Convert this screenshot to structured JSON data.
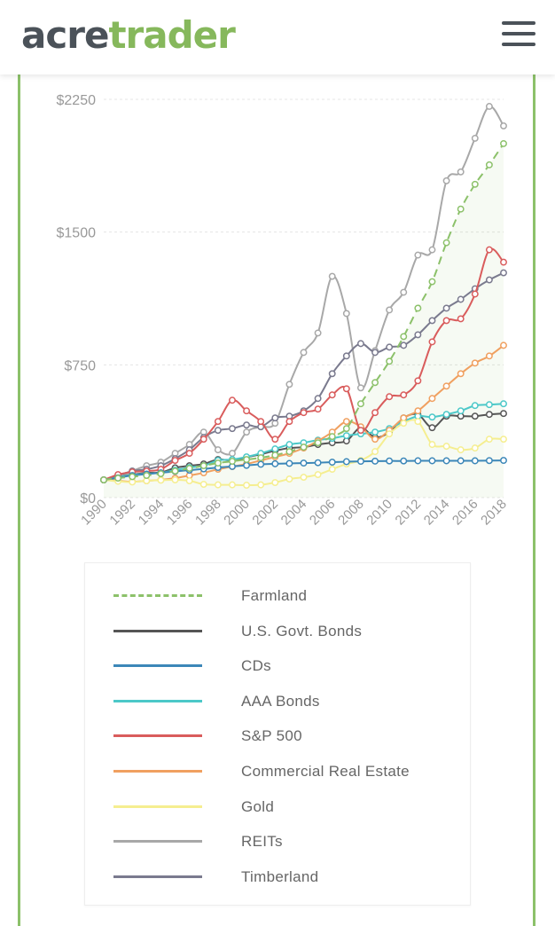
{
  "header": {
    "logo_part1": "acre",
    "logo_part2": "trader"
  },
  "chart_data": {
    "type": "line",
    "title": "",
    "xlabel": "",
    "ylabel": "",
    "x": [
      1990,
      1991,
      1992,
      1993,
      1994,
      1995,
      1996,
      1997,
      1998,
      1999,
      2000,
      2001,
      2002,
      2003,
      2004,
      2005,
      2006,
      2007,
      2008,
      2009,
      2010,
      2011,
      2012,
      2013,
      2014,
      2015,
      2016,
      2017,
      2018
    ],
    "x_ticks": [
      "1990",
      "1992",
      "1994",
      "1996",
      "1998",
      "2000",
      "2002",
      "2004",
      "2006",
      "2008",
      "2010",
      "2012",
      "2014",
      "2016",
      "2018"
    ],
    "y_ticks": [
      "$0",
      "$750",
      "$1500",
      "$2250"
    ],
    "ylim": [
      0,
      2250
    ],
    "grid": true,
    "series": [
      {
        "name": "Farmland",
        "color": "#8cc16a",
        "dash": true,
        "values": [
          100,
          110,
          118,
          125,
          135,
          150,
          165,
          180,
          195,
          205,
          215,
          225,
          240,
          260,
          285,
          310,
          345,
          390,
          530,
          650,
          770,
          910,
          1070,
          1220,
          1440,
          1630,
          1770,
          1880,
          2000
        ]
      },
      {
        "name": "U.S. Govt. Bonds",
        "color": "#555555",
        "dash": false,
        "values": [
          100,
          116,
          130,
          140,
          142,
          168,
          180,
          190,
          215,
          210,
          228,
          245,
          265,
          280,
          285,
          300,
          310,
          320,
          395,
          340,
          370,
          450,
          470,
          395,
          460,
          460,
          460,
          470,
          475
        ]
      },
      {
        "name": "CDs",
        "color": "#3c87b8",
        "dash": false,
        "values": [
          100,
          112,
          125,
          133,
          140,
          148,
          155,
          162,
          170,
          176,
          182,
          188,
          191,
          193,
          195,
          197,
          200,
          203,
          205,
          206,
          207,
          207,
          208,
          208,
          208,
          208,
          208,
          209,
          210
        ]
      },
      {
        "name": "AAA Bonds",
        "color": "#4cc8c8",
        "dash": false,
        "values": [
          100,
          115,
          128,
          135,
          140,
          155,
          170,
          180,
          210,
          215,
          230,
          250,
          275,
          300,
          310,
          325,
          335,
          350,
          360,
          370,
          390,
          430,
          460,
          455,
          470,
          490,
          520,
          525,
          530
        ]
      },
      {
        "name": "S&P 500",
        "color": "#d95c5c",
        "dash": false,
        "values": [
          100,
          130,
          145,
          150,
          160,
          210,
          250,
          330,
          430,
          550,
          490,
          430,
          330,
          430,
          480,
          500,
          580,
          615,
          380,
          480,
          570,
          580,
          660,
          880,
          1000,
          1010,
          1150,
          1400,
          1330
        ]
      },
      {
        "name": "Commercial Real Estate",
        "color": "#f0a060",
        "dash": false,
        "values": [
          100,
          95,
          90,
          95,
          100,
          110,
          125,
          140,
          160,
          175,
          190,
          210,
          230,
          250,
          280,
          320,
          370,
          430,
          400,
          330,
          380,
          450,
          490,
          560,
          630,
          700,
          760,
          800,
          860
        ]
      },
      {
        "name": "Gold",
        "color": "#f5ee90",
        "dash": false,
        "values": [
          100,
          92,
          88,
          95,
          98,
          100,
          95,
          75,
          72,
          72,
          70,
          72,
          85,
          105,
          115,
          130,
          160,
          190,
          210,
          260,
          360,
          420,
          430,
          300,
          290,
          270,
          280,
          330,
          330
        ]
      },
      {
        "name": "REITs",
        "color": "#a8a8a8",
        "dash": false,
        "values": [
          100,
          110,
          150,
          180,
          200,
          250,
          300,
          370,
          270,
          250,
          370,
          400,
          420,
          640,
          820,
          930,
          1250,
          1040,
          620,
          830,
          1060,
          1160,
          1370,
          1400,
          1790,
          1840,
          2030,
          2210,
          2100
        ]
      },
      {
        "name": "Timberland",
        "color": "#7a7a8e",
        "dash": false,
        "values": [
          100,
          125,
          150,
          160,
          180,
          220,
          270,
          340,
          380,
          390,
          410,
          400,
          450,
          460,
          490,
          560,
          700,
          800,
          870,
          820,
          850,
          860,
          920,
          1000,
          1070,
          1120,
          1180,
          1230,
          1270
        ]
      }
    ]
  }
}
